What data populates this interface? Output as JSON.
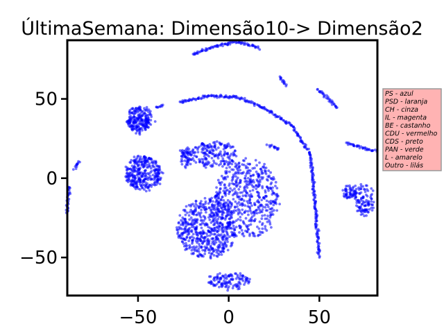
{
  "chart_data": {
    "type": "scatter",
    "title": "ÚltimaSemana: Dimensão10-> Dimensão2",
    "xlabel": "",
    "ylabel": "",
    "xlim": [
      -89,
      82
    ],
    "ylim": [
      -74,
      87
    ],
    "x_ticks": [
      -50,
      0,
      50
    ],
    "y_ticks": [
      -50,
      0,
      50
    ],
    "x_tick_labels": [
      "−50",
      "0",
      "50"
    ],
    "y_tick_labels": [
      "−50",
      "0",
      "50"
    ],
    "grid": false,
    "point_color": "#0000ff",
    "legend": {
      "placement": "right-outside",
      "background": "#ffb3b3",
      "border": "#999999",
      "entries": [
        "PS - azul",
        "PSD - laranja",
        "CH - cinza",
        "IL - magenta",
        "BE - castanho",
        "CDU - vermelho",
        "CDS - preto",
        "PAN - verde",
        "L - amarelo",
        "Outro - lilás"
      ]
    },
    "clusters": [
      {
        "shape": "arc",
        "points": [
          [
            -20,
            78
          ],
          [
            -5,
            84
          ],
          [
            5,
            86
          ],
          [
            17,
            82
          ]
        ]
      },
      {
        "shape": "arc",
        "points": [
          [
            -27,
            48
          ],
          [
            -10,
            52
          ],
          [
            5,
            51
          ],
          [
            20,
            44
          ],
          [
            35,
            33
          ],
          [
            45,
            15
          ],
          [
            47,
            -10
          ],
          [
            49,
            -35
          ],
          [
            50,
            -50
          ]
        ]
      },
      {
        "shape": "arc",
        "points": [
          [
            -40,
            45
          ],
          [
            -36,
            46
          ]
        ]
      },
      {
        "shape": "arc",
        "points": [
          [
            28,
            64
          ],
          [
            32,
            58
          ]
        ]
      },
      {
        "shape": "arc",
        "points": [
          [
            49,
            56
          ],
          [
            55,
            50
          ],
          [
            60,
            44
          ]
        ]
      },
      {
        "shape": "arc",
        "points": [
          [
            65,
            22
          ],
          [
            78,
            18
          ],
          [
            82,
            17
          ]
        ]
      },
      {
        "shape": "arc",
        "points": [
          [
            22,
            21
          ],
          [
            28,
            18
          ]
        ]
      },
      {
        "shape": "arc",
        "points": [
          [
            -85,
            6
          ],
          [
            -82,
            11
          ]
        ]
      },
      {
        "shape": "arc",
        "points": [
          [
            -88,
            -5
          ],
          [
            -89,
            -22
          ]
        ]
      },
      {
        "shape": "blob",
        "center": [
          -49,
          37
        ],
        "spread": [
          7,
          8
        ],
        "n": 220
      },
      {
        "shape": "blob",
        "center": [
          -47,
          3
        ],
        "spread": [
          10,
          11
        ],
        "n": 320
      },
      {
        "shape": "blob",
        "center": [
          -12,
          -32
        ],
        "spread": [
          16,
          19
        ],
        "n": 560
      },
      {
        "shape": "blob",
        "center": [
          10,
          -13
        ],
        "spread": [
          18,
          25
        ],
        "n": 520
      },
      {
        "shape": "blob",
        "center": [
          -8,
          15
        ],
        "spread": [
          13,
          8
        ],
        "n": 180
      },
      {
        "shape": "blob",
        "center": [
          -24,
          13
        ],
        "spread": [
          3,
          6
        ],
        "n": 60
      },
      {
        "shape": "blob",
        "center": [
          67,
          -9
        ],
        "spread": [
          4,
          4
        ],
        "n": 60
      },
      {
        "shape": "blob",
        "center": [
          75,
          -14
        ],
        "spread": [
          5,
          10
        ],
        "n": 100
      },
      {
        "shape": "blob",
        "center": [
          0,
          -65
        ],
        "spread": [
          12,
          5
        ],
        "n": 120
      }
    ]
  }
}
